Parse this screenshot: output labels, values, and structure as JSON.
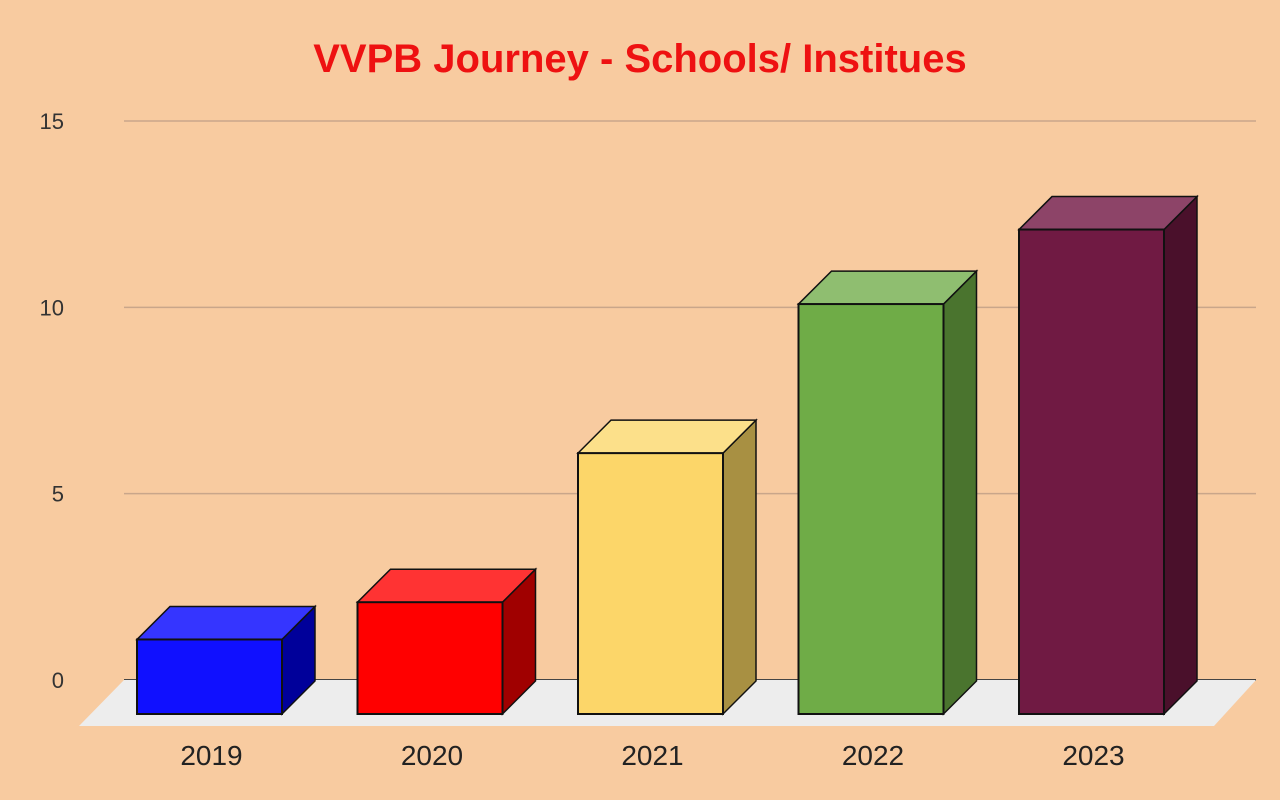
{
  "chart_data": {
    "type": "bar",
    "title": "VVPB Journey - Schools/ Institues",
    "title_color": "#EE1111",
    "categories": [
      "2019",
      "2020",
      "2021",
      "2022",
      "2023"
    ],
    "values": [
      2,
      3,
      7,
      11,
      13
    ],
    "ylim": [
      0,
      15
    ],
    "yticks": [
      "0",
      "5",
      "10",
      "15"
    ],
    "xlabel": "",
    "ylabel": "",
    "grid": true,
    "legend": "none",
    "style": "3d",
    "colors": [
      {
        "front": "#1010FF",
        "top": "#3535FF",
        "side": "#00009A"
      },
      {
        "front": "#FF0000",
        "top": "#FF3333",
        "side": "#A00000"
      },
      {
        "front": "#FCD669",
        "top": "#FCE08A",
        "side": "#A89042"
      },
      {
        "front": "#6FAC47",
        "top": "#8FBE70",
        "side": "#4A742E"
      },
      {
        "front": "#701A43",
        "top": "#8D4468",
        "side": "#4A102B"
      }
    ],
    "background": "#F8CBA0",
    "floor_color": "#EDEDED",
    "grid_color": "#C9A68A"
  }
}
